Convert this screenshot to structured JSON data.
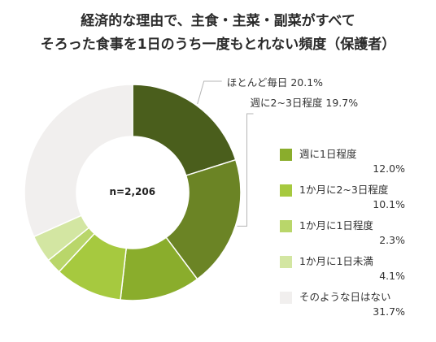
{
  "title": {
    "line1": "経済的な理由で、主食・主菜・副菜がすべて",
    "line2": "そろった食事を1日のうち一度もとれない頻度（保護者）"
  },
  "chart_data": {
    "type": "pie",
    "donut": true,
    "center_label": "n=2,206",
    "slices": [
      {
        "label": "ほとんど毎日",
        "value": 20.1,
        "value_label": "20.1%",
        "color": "#4a5e1c"
      },
      {
        "label": "週に2~3日程度",
        "value": 19.7,
        "value_label": "19.7%",
        "color": "#6b8425"
      },
      {
        "label": "週に1日程度",
        "value": 12.0,
        "value_label": "12.0%",
        "color": "#8aad2c"
      },
      {
        "label": "1か月に2~3日程度",
        "value": 10.1,
        "value_label": "10.1%",
        "color": "#a6c93f"
      },
      {
        "label": "1か月に1日程度",
        "value": 2.3,
        "value_label": "2.3%",
        "color": "#b9d66a"
      },
      {
        "label": "1か月に1日未満",
        "value": 4.1,
        "value_label": "4.1%",
        "color": "#d3e6a2"
      },
      {
        "label": "そのような日はない",
        "value": 31.7,
        "value_label": "31.7%",
        "color": "#f1efee"
      }
    ]
  }
}
